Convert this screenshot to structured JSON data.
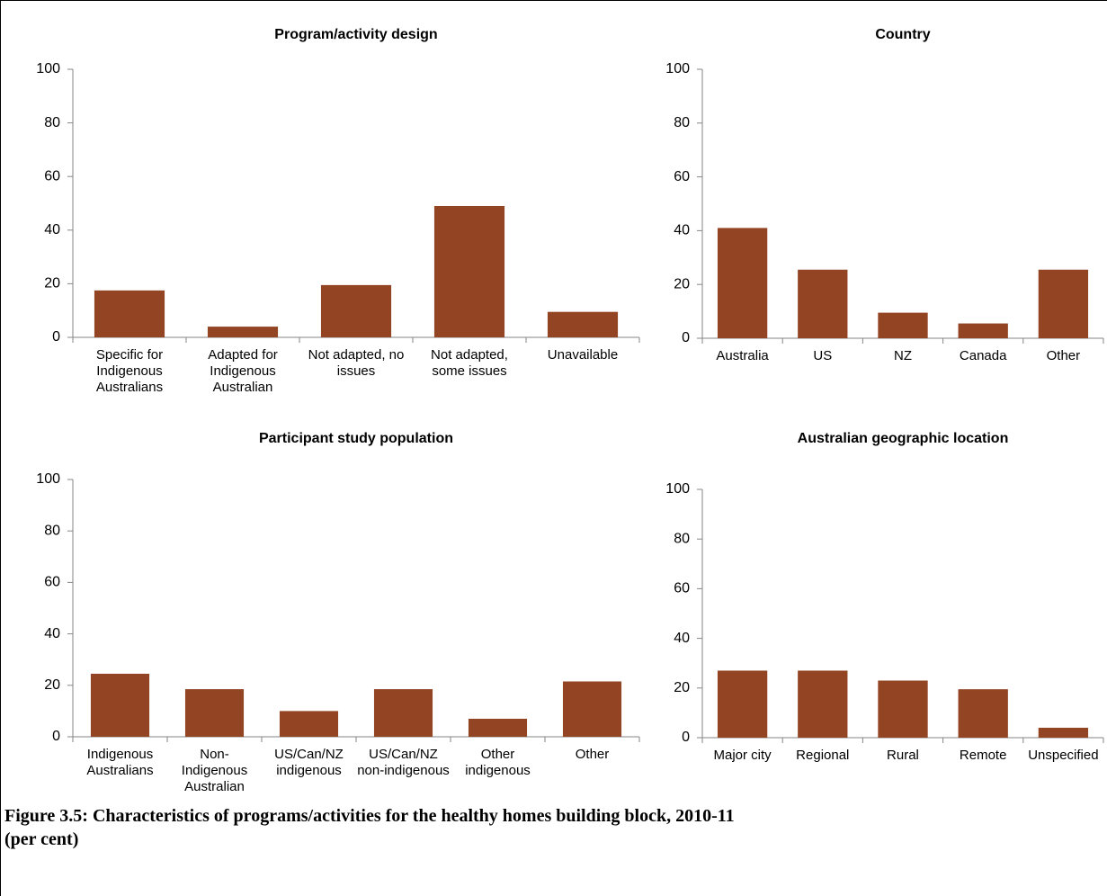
{
  "chart_data": [
    {
      "type": "bar",
      "title": "Program/activity design",
      "categories": [
        "Specific for Indigenous Australians",
        "Adapted for Indigenous Australian",
        "Not adapted, no issues",
        "Not adapted, some issues",
        "Unavailable"
      ],
      "values": [
        17.5,
        4,
        19.5,
        49,
        9.5
      ],
      "color": "#934423",
      "ylim": [
        0,
        100
      ],
      "yticks": [
        0,
        20,
        40,
        60,
        80,
        100
      ]
    },
    {
      "type": "bar",
      "title": "Country",
      "categories": [
        "Australia",
        "US",
        "NZ",
        "Canada",
        "Other"
      ],
      "values": [
        41,
        25.5,
        9.5,
        5.5,
        25.5
      ],
      "color": "#934423",
      "ylim": [
        0,
        100
      ],
      "yticks": [
        0,
        20,
        40,
        60,
        80,
        100
      ]
    },
    {
      "type": "bar",
      "title": "Participant study population",
      "categories": [
        "Indigenous Australians",
        "Non-Indigenous Australian",
        "US/Can/NZ indigenous",
        "US/Can/NZ non-indigenous",
        "Other indigenous",
        "Other"
      ],
      "values": [
        24.5,
        18.5,
        10,
        18.5,
        7,
        21.5
      ],
      "color": "#934423",
      "ylim": [
        0,
        100
      ],
      "yticks": [
        0,
        20,
        40,
        60,
        80,
        100
      ]
    },
    {
      "type": "bar",
      "title": "Australian geographic location",
      "categories": [
        "Major city",
        "Regional",
        "Rural",
        "Remote",
        "Unspecified"
      ],
      "values": [
        27,
        27,
        23,
        19.5,
        4
      ],
      "color": "#934423",
      "ylim": [
        0,
        100
      ],
      "yticks": [
        0,
        20,
        40,
        60,
        80,
        100
      ]
    }
  ],
  "figure_caption": "Figure 3.5: Characteristics of programs/activities for the healthy homes building block, 2010-11 (per cent)"
}
